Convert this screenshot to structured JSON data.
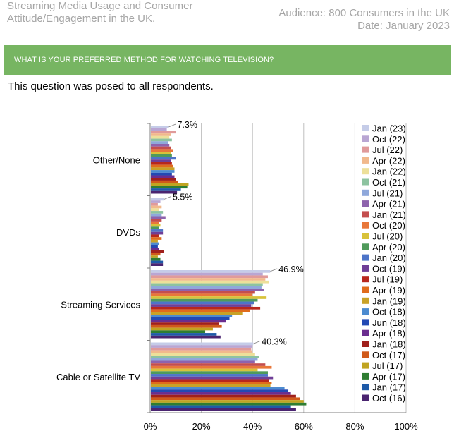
{
  "header": {
    "left_line1": "Streaming Media Usage and Consumer",
    "left_line2": "Attitude/Engagement in the UK.",
    "right_line1": "Audience: 800 Consumers in the UK",
    "right_line2": "Date: January 2023"
  },
  "banner": {
    "question": "WHAT IS YOUR PREFERRED METHOD FOR WATCHING TELEVISION?"
  },
  "subtitle": "This question was posed to all respondents.",
  "colors": {
    "banner": "#77b562",
    "header_text": "#a6a6a6"
  },
  "chart_data": {
    "type": "bar",
    "orientation": "horizontal",
    "categories": [
      "Other/None",
      "DVDs",
      "Streaming Services",
      "Cable or Satellite TV"
    ],
    "xlim": [
      0,
      100
    ],
    "x_ticks": [
      "0%",
      "20%",
      "40%",
      "60%",
      "80%",
      "100%"
    ],
    "grid": true,
    "legend_position": "right",
    "annotations": [
      {
        "category": "Other/None",
        "text": "7.3%"
      },
      {
        "category": "DVDs",
        "text": "5.5%"
      },
      {
        "category": "Streaming Services",
        "text": "46.9%"
      },
      {
        "category": "Cable or Satellite TV",
        "text": "40.3%"
      }
    ],
    "series": [
      {
        "name": "Jan (23)",
        "color": "#c5cce8",
        "values": [
          7.3,
          5.5,
          46.9,
          40.3
        ]
      },
      {
        "name": "Oct (22)",
        "color": "#b9a6d3",
        "values": [
          6.5,
          4.0,
          44.0,
          40.0
        ]
      },
      {
        "name": "Jul (22)",
        "color": "#e09a9a",
        "values": [
          10.0,
          3.0,
          46.0,
          39.5
        ]
      },
      {
        "name": "Apr (22)",
        "color": "#f1b98c",
        "values": [
          8.0,
          4.5,
          45.0,
          40.0
        ]
      },
      {
        "name": "Jan (22)",
        "color": "#ede09a",
        "values": [
          7.5,
          3.5,
          46.5,
          41.0
        ]
      },
      {
        "name": "Oct (21)",
        "color": "#8dc3a0",
        "values": [
          8.5,
          5.0,
          44.0,
          42.5
        ]
      },
      {
        "name": "Jul (21)",
        "color": "#8fa8db",
        "values": [
          7.0,
          4.5,
          43.5,
          42.0
        ]
      },
      {
        "name": "Apr (21)",
        "color": "#8e63ad",
        "values": [
          7.5,
          6.0,
          44.5,
          41.0
        ]
      },
      {
        "name": "Jan (21)",
        "color": "#c44e4e",
        "values": [
          8.0,
          4.5,
          41.0,
          45.0
        ]
      },
      {
        "name": "Oct (20)",
        "color": "#e8773a",
        "values": [
          9.0,
          3.5,
          40.0,
          47.5
        ]
      },
      {
        "name": "Jul (20)",
        "color": "#d8c23a",
        "values": [
          8.0,
          4.0,
          45.5,
          42.0
        ]
      },
      {
        "name": "Apr (20)",
        "color": "#4f9a5b",
        "values": [
          8.5,
          3.5,
          42.0,
          46.0
        ]
      },
      {
        "name": "Jan (20)",
        "color": "#4d74c8",
        "values": [
          10.0,
          5.0,
          40.5,
          46.0
        ]
      },
      {
        "name": "Oct (19)",
        "color": "#6f3e97",
        "values": [
          8.0,
          5.0,
          39.5,
          48.0
        ]
      },
      {
        "name": "Jul (19)",
        "color": "#b8271d",
        "values": [
          8.5,
          3.5,
          43.0,
          46.5
        ]
      },
      {
        "name": "Apr (19)",
        "color": "#e06c1c",
        "values": [
          9.0,
          4.5,
          39.0,
          47.5
        ]
      },
      {
        "name": "Jan (19)",
        "color": "#c9a227",
        "values": [
          9.5,
          3.0,
          36.0,
          47.0
        ]
      },
      {
        "name": "Oct (18)",
        "color": "#4c8bd0",
        "values": [
          9.5,
          3.5,
          32.0,
          52.5
        ]
      },
      {
        "name": "Jun (18)",
        "color": "#2249b3",
        "values": [
          8.5,
          3.0,
          31.0,
          54.0
        ]
      },
      {
        "name": "Apr (18)",
        "color": "#6a2d8f",
        "values": [
          9.5,
          3.5,
          29.5,
          55.0
        ]
      },
      {
        "name": "Jan (18)",
        "color": "#a0201c",
        "values": [
          10.0,
          5.5,
          27.0,
          57.0
        ]
      },
      {
        "name": "Oct (17)",
        "color": "#d05a1a",
        "values": [
          11.0,
          4.0,
          28.0,
          58.5
        ]
      },
      {
        "name": "Jul (17)",
        "color": "#c0a421",
        "values": [
          15.0,
          3.0,
          24.5,
          60.0
        ]
      },
      {
        "name": "Apr (17)",
        "color": "#2e7d32",
        "values": [
          14.5,
          4.0,
          21.5,
          61.0
        ]
      },
      {
        "name": "Jan (17)",
        "color": "#1e5aa8",
        "values": [
          12.0,
          5.0,
          26.0,
          55.0
        ]
      },
      {
        "name": "Oct (16)",
        "color": "#4a2470",
        "values": [
          10.5,
          5.0,
          27.5,
          57.0
        ]
      }
    ]
  }
}
